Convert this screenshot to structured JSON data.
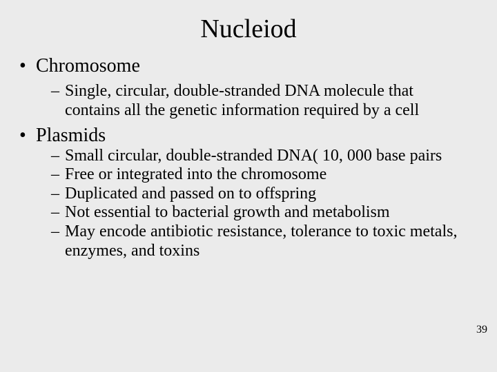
{
  "slide": {
    "title": "Nucleiod",
    "page_number": "39",
    "background_color": "#ebebeb",
    "text_color": "#000000",
    "title_fontsize": 38,
    "body_fontsize_level1": 28,
    "body_fontsize_level2": 24,
    "font_family": "Times New Roman",
    "sections": [
      {
        "heading": "Chromosome",
        "items": [
          "Single, circular, double-stranded DNA molecule that contains all the genetic information required by a cell"
        ]
      },
      {
        "heading": "Plasmids",
        "items": [
          "Small circular, double-stranded DNA( 10, 000 base pairs",
          "Free or integrated into the chromosome",
          "Duplicated and passed on to offspring",
          "Not essential to bacterial growth and metabolism",
          "May encode antibiotic resistance, tolerance to toxic metals, enzymes, and toxins"
        ]
      }
    ]
  }
}
